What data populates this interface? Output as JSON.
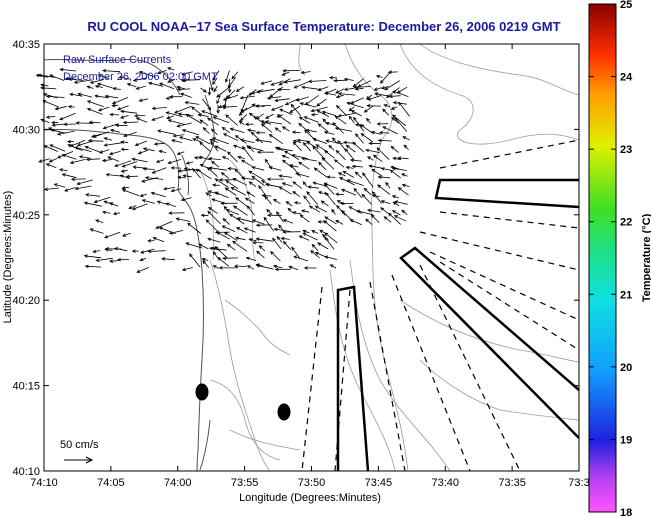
{
  "title": "RU COOL  NOAA−17  Sea Surface Temperature:  December 26, 2006 0219 GMT",
  "annotation": {
    "line1": "Raw Surface Currents",
    "line2": "December 26, 2006 02:00 GMT"
  },
  "scale": {
    "label": "50 cm/s"
  },
  "axes": {
    "xlabel": "Longitude (Degrees:Minutes)",
    "ylabel": "Latitude (Degrees:Minutes)",
    "xticks": [
      "74:10",
      "74:05",
      "74:00",
      "73:55",
      "73:50",
      "73:45",
      "73:40",
      "73:35",
      "73:3"
    ],
    "yticks": [
      "40:35",
      "40:30",
      "40:25",
      "40:20",
      "40:15",
      "40:10"
    ]
  },
  "colorbar": {
    "label": "Temperature (°C)",
    "ticks": [
      "25",
      "24",
      "23",
      "22",
      "21",
      "20",
      "19",
      "18"
    ],
    "min": 18,
    "max": 25
  },
  "colors": {
    "title_text": "#1a1aa0",
    "contour": "#9a9a9a",
    "coast": "#505050",
    "arrows": "#000000"
  },
  "map_features": {
    "arrow_field": "raw surface current vectors",
    "polygons": "shipping lane / disposal area outlines",
    "markers": "two filled black ovals near shore"
  }
}
